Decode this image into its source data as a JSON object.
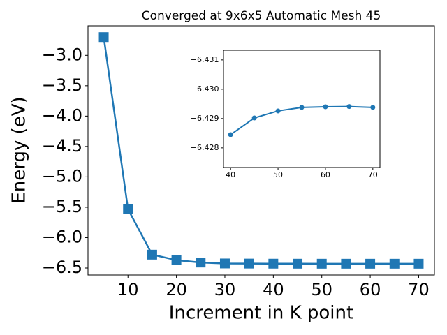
{
  "chart_data": [
    {
      "type": "line",
      "title": "Converged at 9x6x5 Automatic Mesh 45",
      "xlabel": "Increment in K point",
      "ylabel": "Energy (eV)",
      "x": [
        5,
        10,
        15,
        20,
        25,
        30,
        35,
        40,
        45,
        50,
        55,
        60,
        65,
        70
      ],
      "series": [
        {
          "color": "#1f77b4",
          "marker": "square",
          "values": [
            -2.7,
            -5.53,
            -6.28,
            -6.37,
            -6.41,
            -6.425,
            -6.427,
            -6.4285,
            -6.429,
            -6.4293,
            -6.4294,
            -6.4294,
            -6.4294,
            -6.4294
          ]
        }
      ],
      "xlim": [
        1.75,
        73.25
      ],
      "ylim": [
        -6.615,
        -2.514
      ],
      "xticks": [
        10,
        20,
        30,
        40,
        50,
        60,
        70
      ],
      "yticks": [
        {
          "value": -3.0,
          "label": "−3.0"
        },
        {
          "value": -3.5,
          "label": "−3.5"
        },
        {
          "value": -4.0,
          "label": "−4.0"
        },
        {
          "value": -4.5,
          "label": "−4.5"
        },
        {
          "value": -5.0,
          "label": "−5.0"
        },
        {
          "value": -5.5,
          "label": "−5.5"
        },
        {
          "value": -6.0,
          "label": "−6.0"
        },
        {
          "value": -6.5,
          "label": "−6.5"
        }
      ]
    },
    {
      "type": "line",
      "x": [
        40,
        45,
        50,
        55,
        60,
        65,
        70
      ],
      "series": [
        {
          "color": "#1f77b4",
          "marker": "circle",
          "values": [
            -6.42845,
            -6.42902,
            -6.42926,
            -6.42938,
            -6.4294,
            -6.42941,
            -6.42938
          ]
        }
      ],
      "xlim": [
        38.5,
        71.5
      ],
      "ylim": [
        -6.42733,
        -6.43133
      ],
      "xticks": [
        40,
        50,
        60,
        70
      ],
      "yticks": [
        {
          "value": -6.431,
          "label": "−6.431"
        },
        {
          "value": -6.43,
          "label": "−6.430"
        },
        {
          "value": -6.429,
          "label": "−6.429"
        },
        {
          "value": -6.428,
          "label": "−6.428"
        }
      ]
    }
  ]
}
